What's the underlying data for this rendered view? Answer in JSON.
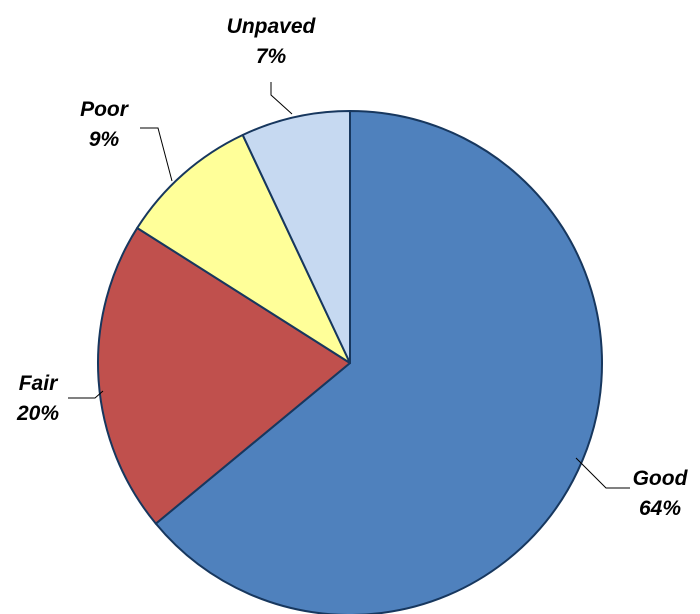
{
  "chart_data": {
    "type": "pie",
    "title": "",
    "slices": [
      {
        "label": "Good",
        "percent_label": "64%",
        "value": 64,
        "color": "#4f81bd"
      },
      {
        "label": "Fair",
        "percent_label": "20%",
        "value": 20,
        "color": "#c0504d"
      },
      {
        "label": "Poor",
        "percent_label": "9%",
        "value": 9,
        "color": "#ffff99"
      },
      {
        "label": "Unpaved",
        "percent_label": "7%",
        "value": 7,
        "color": "#c6d9f1"
      }
    ],
    "start": "12 o'clock",
    "direction": "clockwise",
    "legend": "none",
    "slice_border_color": "#17375e"
  }
}
